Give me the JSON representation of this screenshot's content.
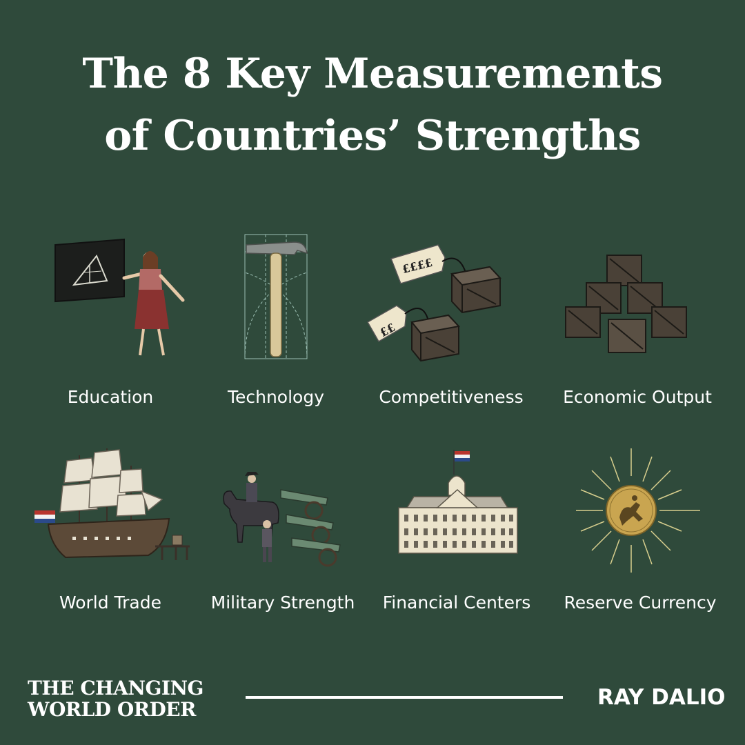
{
  "title": {
    "line1": "The 8 Key Measurements",
    "line2": "of Countries’ Strengths"
  },
  "measurements": [
    {
      "label": "Education",
      "icon": "teacher-chalkboard-icon"
    },
    {
      "label": "Technology",
      "icon": "hammer-blueprint-icon"
    },
    {
      "label": "Competitiveness",
      "icon": "price-tag-crates-icon"
    },
    {
      "label": "Economic Output",
      "icon": "stacked-crates-icon"
    },
    {
      "label": "World Trade",
      "icon": "sailing-ship-icon"
    },
    {
      "label": "Military Strength",
      "icon": "cavalry-cannons-icon"
    },
    {
      "label": "Financial Centers",
      "icon": "city-hall-building-icon"
    },
    {
      "label": "Reserve Currency",
      "icon": "gold-coin-sunburst-icon"
    }
  ],
  "price_tags": {
    "large": "££££",
    "small": "££"
  },
  "footer": {
    "brand_line1": "THE CHANGING",
    "brand_line2": "WORLD ORDER",
    "author": "RAY DALIO"
  },
  "colors": {
    "background": "#2f4a3b",
    "text": "#ffffff",
    "crate": "#4a4137",
    "coin": "#c9a550"
  }
}
